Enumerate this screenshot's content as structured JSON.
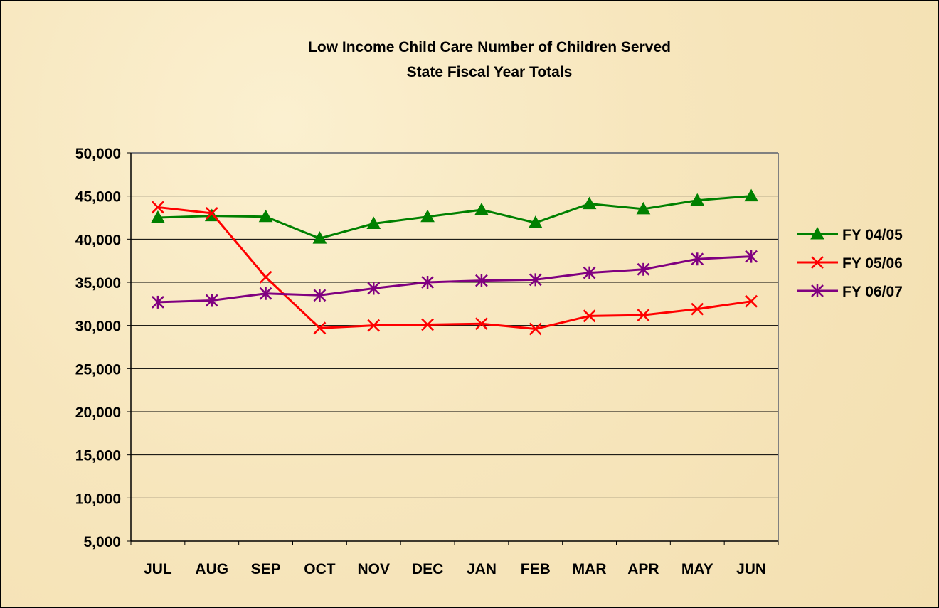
{
  "chart_data": {
    "type": "line",
    "title": "Low Income Child Care Number of Children Served",
    "subtitle": "State Fiscal Year Totals",
    "xlabel": "",
    "ylabel": "",
    "categories": [
      "JUL",
      "AUG",
      "SEP",
      "OCT",
      "NOV",
      "DEC",
      "JAN",
      "FEB",
      "MAR",
      "APR",
      "MAY",
      "JUN"
    ],
    "ylim": [
      5000,
      50000
    ],
    "yticks": [
      5000,
      10000,
      15000,
      20000,
      25000,
      30000,
      35000,
      40000,
      45000,
      50000
    ],
    "ytick_labels": [
      "5,000",
      "10,000",
      "15,000",
      "20,000",
      "25,000",
      "30,000",
      "35,000",
      "40,000",
      "45,000",
      "50,000"
    ],
    "grid": true,
    "legend_position": "right",
    "series": [
      {
        "name": "FY 04/05",
        "color": "#008000",
        "marker": "triangle",
        "values": [
          42500,
          42700,
          42600,
          40100,
          41800,
          42600,
          43400,
          41900,
          44100,
          43500,
          44500,
          45000
        ]
      },
      {
        "name": "FY 05/06",
        "color": "#ff0000",
        "marker": "x",
        "values": [
          43700,
          43000,
          35600,
          29700,
          30000,
          30100,
          30200,
          29600,
          31100,
          31200,
          31900,
          32800
        ]
      },
      {
        "name": "FY 06/07",
        "color": "#800080",
        "marker": "star",
        "values": [
          32700,
          32900,
          33700,
          33500,
          34300,
          35000,
          35200,
          35300,
          36100,
          36500,
          37700,
          38000
        ]
      }
    ]
  }
}
